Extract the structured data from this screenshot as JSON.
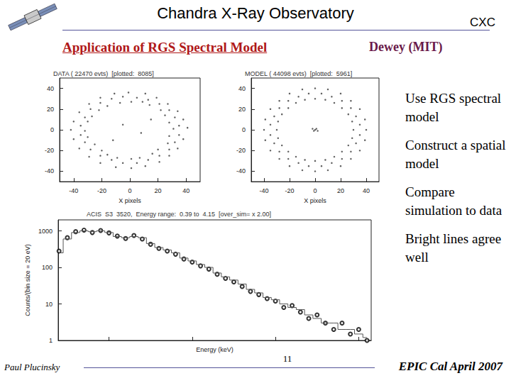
{
  "slide": {
    "header": "Chandra X-Ray Observatory",
    "logo_text": "CXC",
    "title": "Application of RGS Spectral Model",
    "author": "Dewey (MIT)",
    "bullets": [
      "Use RGS spectral model",
      "Construct a spatial model",
      "Compare simulation to data",
      "Bright lines agree well"
    ],
    "footer": {
      "left": "Paul Plucinsky",
      "page": "11",
      "right": "EPIC Cal April 2007"
    }
  },
  "chart_data": [
    {
      "type": "scatter",
      "title": "DATA ( 22470 evts)  [plotted:  8085]",
      "x_label": "X pixels",
      "xlim": [
        -50,
        50
      ],
      "xticks": [
        -40,
        -20,
        0,
        20,
        40
      ],
      "ylim": [
        -50,
        50
      ],
      "yticks": [
        -40,
        -20,
        0,
        20,
        40
      ],
      "grid": false,
      "color": "#3a3a3a",
      "x": [
        31,
        28,
        25,
        22,
        14,
        9,
        1,
        -7,
        -16,
        -22,
        -27,
        -30,
        -32,
        -30,
        -25,
        -20,
        -16,
        -9,
        1,
        7,
        16,
        20,
        27,
        28,
        41,
        38,
        34,
        27,
        19,
        11,
        -1,
        -11,
        -21,
        -29,
        -36,
        -40,
        -42,
        -40,
        -36,
        -29,
        -21,
        -10,
        1,
        11,
        21,
        28,
        34,
        38,
        35,
        32,
        28,
        21,
        13,
        5,
        -5,
        -13,
        -21,
        -28,
        -32,
        -35,
        -35,
        -32,
        -28,
        -21,
        -13,
        -5,
        5,
        13,
        21,
        28,
        32,
        35,
        -5,
        8,
        -12,
        15
      ],
      "values": [
        1,
        7,
        14,
        19,
        24,
        27,
        27,
        26,
        23,
        19,
        13,
        8,
        -1,
        -7,
        -14,
        -20,
        -24,
        -27,
        -28,
        -27,
        -23,
        -19,
        -13,
        -6,
        2,
        10,
        18,
        25,
        31,
        35,
        36,
        35,
        31,
        25,
        17,
        8,
        0,
        -9,
        -18,
        -26,
        -32,
        -36,
        -37,
        -35,
        -31,
        -25,
        -18,
        -9,
        4,
        12,
        19,
        25,
        29,
        31,
        32,
        30,
        26,
        20,
        12,
        4,
        -5,
        -12,
        -19,
        -25,
        -29,
        -32,
        -32,
        -29,
        -25,
        -19,
        -12,
        -5,
        5,
        -3,
        -10,
        10
      ]
    },
    {
      "type": "scatter",
      "title": "MODEL ( 44098 evts)  [plotted:  5961]",
      "x_label": "X pixels",
      "xlim": [
        -50,
        50
      ],
      "xticks": [
        -40,
        -20,
        0,
        20,
        40
      ],
      "ylim": [
        -50,
        50
      ],
      "yticks": [
        -40,
        -20,
        0,
        20,
        40
      ],
      "grid": false,
      "color": "#3a3a3a",
      "x": [
        30,
        29,
        26,
        21,
        15,
        8,
        0,
        -8,
        -15,
        -21,
        -26,
        -29,
        -30,
        -29,
        -26,
        -21,
        -15,
        -8,
        0,
        8,
        15,
        21,
        26,
        29,
        40,
        39,
        35,
        28,
        20,
        10,
        0,
        -10,
        -20,
        -28,
        -35,
        -39,
        -40,
        -39,
        -35,
        -28,
        -20,
        -10,
        0,
        10,
        20,
        28,
        35,
        39,
        35,
        32,
        28,
        21,
        13,
        5,
        -5,
        -13,
        -21,
        -28,
        -32,
        -35,
        -35,
        -32,
        -28,
        -21,
        -13,
        -5,
        5,
        13,
        21,
        28,
        32,
        35,
        0,
        1,
        -1,
        2,
        -2
      ],
      "values": [
        0,
        8,
        15,
        21,
        26,
        29,
        30,
        29,
        26,
        21,
        15,
        8,
        0,
        -8,
        -15,
        -21,
        -26,
        -29,
        -30,
        -29,
        -26,
        -21,
        -15,
        -8,
        0,
        10,
        20,
        28,
        35,
        39,
        40,
        39,
        35,
        28,
        20,
        10,
        0,
        -10,
        -20,
        -28,
        -35,
        -39,
        -40,
        -39,
        -35,
        -28,
        -20,
        -10,
        5,
        13,
        21,
        28,
        32,
        35,
        35,
        32,
        28,
        21,
        13,
        5,
        -5,
        -13,
        -21,
        -28,
        -32,
        -35,
        -35,
        -32,
        -28,
        -21,
        -13,
        -5,
        0,
        1,
        -1,
        -1,
        1
      ]
    },
    {
      "type": "line",
      "title": "ACIS  S3  3520,  Energy range:  0.39 to  4.15  [over_sim= x 2.00]",
      "x_label": "Energy (keV)",
      "y_label": "Counts/(bin size = 20 eV)",
      "log": "y",
      "grid": false,
      "tick_labels": "y",
      "xlim": [
        0.39,
        4.15
      ],
      "xticks": [
        1,
        2,
        3,
        4
      ],
      "ylim": [
        1,
        2000
      ],
      "yticks": [
        1,
        10,
        100,
        1000
      ],
      "x": [
        0.4,
        0.5,
        0.6,
        0.7,
        0.8,
        0.9,
        1.0,
        1.1,
        1.2,
        1.3,
        1.4,
        1.5,
        1.6,
        1.7,
        1.8,
        1.9,
        2.0,
        2.1,
        2.2,
        2.3,
        2.4,
        2.5,
        2.6,
        2.7,
        2.8,
        2.9,
        3.0,
        3.1,
        3.2,
        3.3,
        3.4,
        3.5,
        3.6,
        3.7,
        3.8,
        3.9,
        4.0,
        4.1
      ],
      "series": [
        {
          "type": "line",
          "line_style": "step",
          "color": "#555555",
          "values": [
            250,
            600,
            900,
            1000,
            950,
            1000,
            900,
            700,
            650,
            700,
            650,
            450,
            350,
            300,
            250,
            180,
            150,
            120,
            100,
            70,
            55,
            45,
            35,
            25,
            20,
            15,
            13,
            10,
            8,
            7,
            5,
            4,
            3,
            3,
            2,
            2,
            1.5,
            1.2
          ]
        },
        {
          "type": "scatter",
          "marker": "circle",
          "color": "#000000",
          "values": [
            280,
            650,
            950,
            1050,
            900,
            1020,
            880,
            720,
            620,
            750,
            600,
            430,
            330,
            280,
            230,
            170,
            140,
            110,
            90,
            65,
            50,
            40,
            30,
            22,
            18,
            14,
            12,
            8,
            9,
            6,
            4,
            5,
            3,
            2,
            3,
            1.5,
            2,
            1
          ]
        }
      ]
    }
  ]
}
